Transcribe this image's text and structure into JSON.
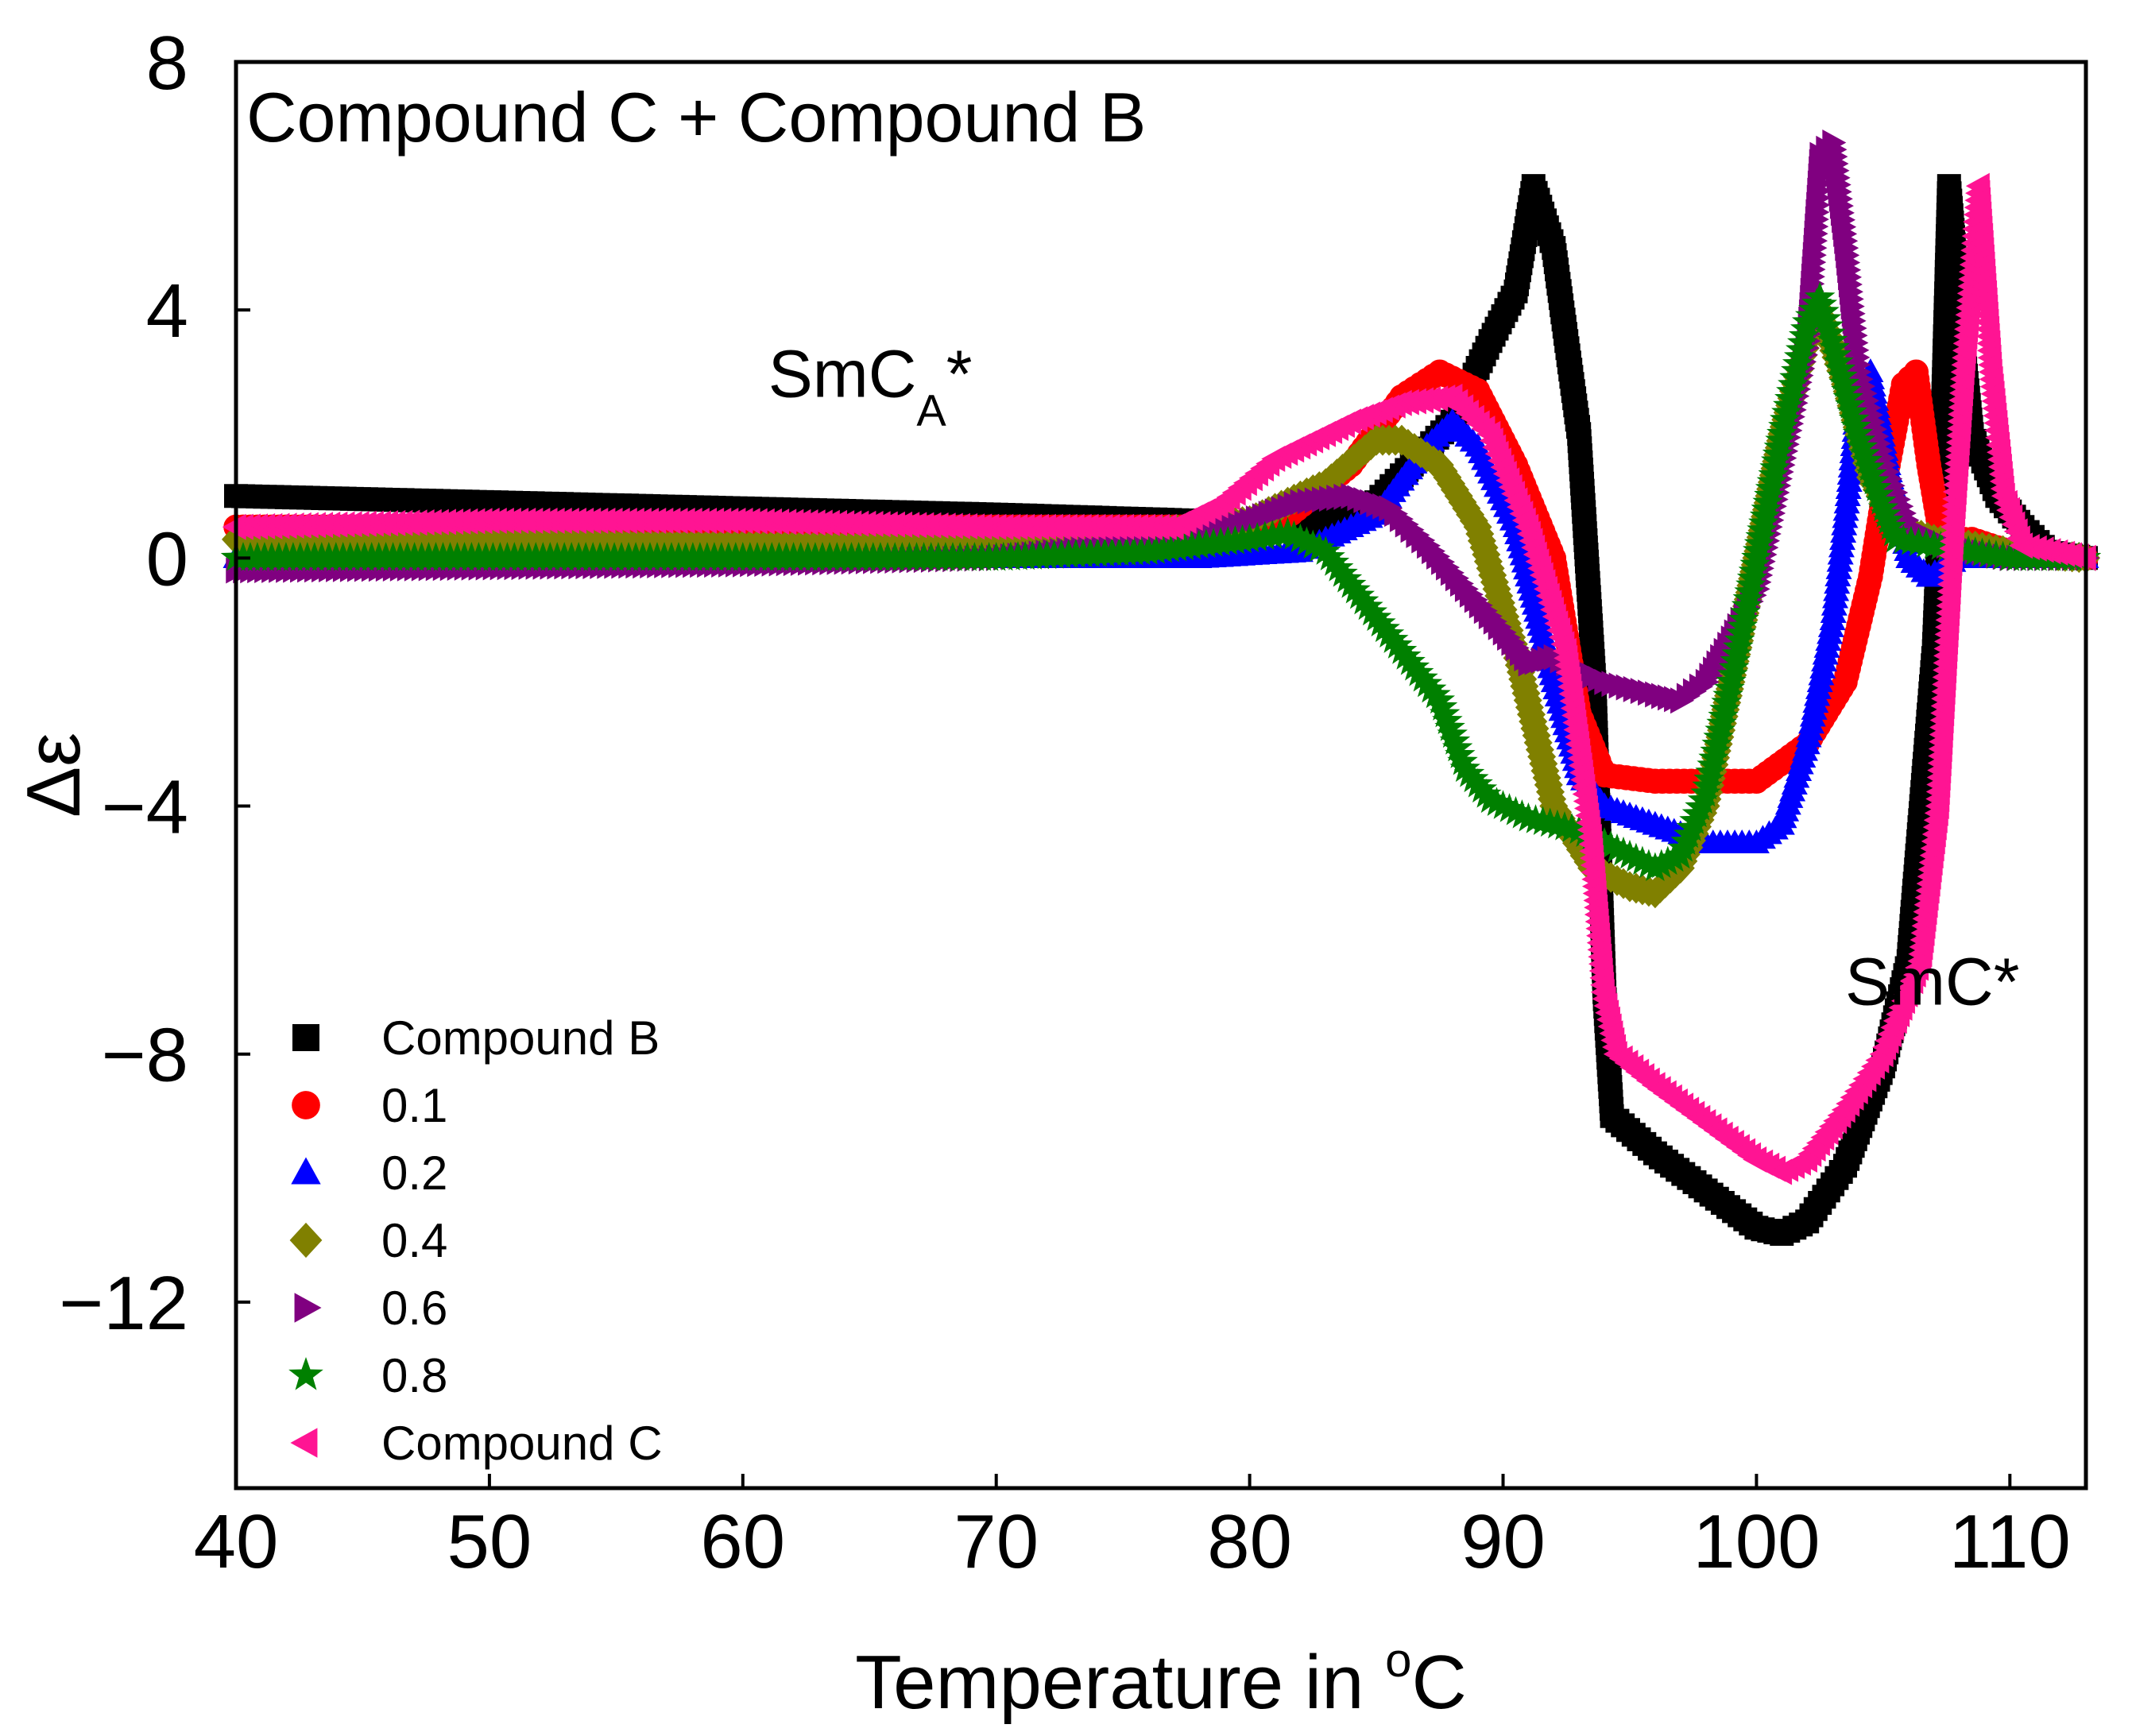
{
  "chart_data": {
    "type": "scatter",
    "title": "Compound C + Compound B",
    "xlabel": {
      "main": "Temperature in ",
      "sup": "o",
      "tail": "C"
    },
    "ylabel": "Δε",
    "xlim": [
      40,
      113
    ],
    "ylim": [
      -15,
      8
    ],
    "xticks": [
      40,
      50,
      60,
      70,
      80,
      90,
      100,
      110
    ],
    "yticks": [
      {
        "value": 8,
        "label": "8"
      },
      {
        "value": 4,
        "label": "4"
      },
      {
        "value": 0,
        "label": "0"
      },
      {
        "value": -4,
        "label": "−4"
      },
      {
        "value": -8,
        "label": "−8"
      },
      {
        "value": -12,
        "label": "−12"
      }
    ],
    "grid": false,
    "legend_position": "bottom-left",
    "annotations": [
      {
        "text": "SmC",
        "sub": "A",
        "tail": "*",
        "x": 61,
        "y": 2.6
      },
      {
        "text": "SmC*",
        "x": 103.5,
        "y": -7.2
      }
    ],
    "series": [
      {
        "name": "Compound B",
        "marker": "square",
        "color": "#000000",
        "points": [
          [
            40,
            1.0
          ],
          [
            50,
            0.9
          ],
          [
            60,
            0.8
          ],
          [
            70,
            0.7
          ],
          [
            78,
            0.6
          ],
          [
            82,
            0.5
          ],
          [
            85,
            0.9
          ],
          [
            88,
            2.2
          ],
          [
            89.5,
            3.5
          ],
          [
            90.5,
            4.3
          ],
          [
            91.2,
            6.0
          ],
          [
            92,
            5.0
          ],
          [
            93,
            2.0
          ],
          [
            93.6,
            -2.0
          ],
          [
            94,
            -7.0
          ],
          [
            94.3,
            -9.0
          ],
          [
            96,
            -9.6
          ],
          [
            98,
            -10.2
          ],
          [
            100,
            -10.8
          ],
          [
            101,
            -10.9
          ],
          [
            102,
            -10.7
          ],
          [
            103.5,
            -9.8
          ],
          [
            105,
            -8.2
          ],
          [
            106,
            -6.5
          ],
          [
            106.5,
            -4.0
          ],
          [
            107,
            -1.5
          ],
          [
            107.3,
            1.5
          ],
          [
            107.6,
            6.0
          ],
          [
            108,
            4.0
          ],
          [
            108.5,
            2.0
          ],
          [
            109.5,
            1.0
          ],
          [
            110.5,
            0.5
          ],
          [
            111.5,
            0.1
          ],
          [
            113,
            0.0
          ]
        ]
      },
      {
        "name": "0.1",
        "marker": "circle",
        "color": "#ff0000",
        "points": [
          [
            40,
            0.5
          ],
          [
            60,
            0.5
          ],
          [
            70,
            0.5
          ],
          [
            77,
            0.5
          ],
          [
            81,
            0.5
          ],
          [
            84,
            1.5
          ],
          [
            86,
            2.6
          ],
          [
            87.5,
            3.0
          ],
          [
            89,
            2.7
          ],
          [
            90.5,
            1.5
          ],
          [
            92,
            0.0
          ],
          [
            93,
            -2.5
          ],
          [
            94,
            -3.5
          ],
          [
            96,
            -3.6
          ],
          [
            98,
            -3.6
          ],
          [
            100,
            -3.6
          ],
          [
            102,
            -3.0
          ],
          [
            103.5,
            -2.0
          ],
          [
            104.5,
            -0.3
          ],
          [
            105.2,
            1.5
          ],
          [
            105.8,
            2.8
          ],
          [
            106.3,
            3.0
          ],
          [
            106.8,
            1.5
          ],
          [
            107.3,
            0.3
          ],
          [
            108.5,
            0.3
          ],
          [
            110,
            0.1
          ],
          [
            113,
            0.0
          ]
        ]
      },
      {
        "name": "0.2",
        "marker": "triangle-up",
        "color": "#0000ff",
        "points": [
          [
            40,
            0.0
          ],
          [
            60,
            0.0
          ],
          [
            70,
            0.0
          ],
          [
            78,
            0.0
          ],
          [
            82,
            0.1
          ],
          [
            85,
            0.7
          ],
          [
            87,
            1.8
          ],
          [
            88,
            2.2
          ],
          [
            89,
            1.8
          ],
          [
            90.5,
            0.5
          ],
          [
            92,
            -2.0
          ],
          [
            93,
            -3.5
          ],
          [
            94,
            -4.0
          ],
          [
            96,
            -4.3
          ],
          [
            98,
            -4.6
          ],
          [
            100,
            -4.6
          ],
          [
            101,
            -4.3
          ],
          [
            102,
            -3.0
          ],
          [
            103,
            -1.0
          ],
          [
            103.6,
            1.0
          ],
          [
            104,
            2.5
          ],
          [
            104.5,
            3.0
          ],
          [
            105.2,
            1.5
          ],
          [
            106,
            0.0
          ],
          [
            106.8,
            -0.3
          ],
          [
            108,
            0.0
          ],
          [
            110,
            0.0
          ],
          [
            113,
            0.0
          ]
        ]
      },
      {
        "name": "0.4",
        "marker": "diamond",
        "color": "#808000",
        "points": [
          [
            40,
            0.3
          ],
          [
            60,
            0.2
          ],
          [
            70,
            0.2
          ],
          [
            76,
            0.4
          ],
          [
            80,
            0.6
          ],
          [
            83,
            1.2
          ],
          [
            85,
            1.9
          ],
          [
            86,
            1.9
          ],
          [
            87.5,
            1.5
          ],
          [
            89,
            0.5
          ],
          [
            90.5,
            -1.5
          ],
          [
            92,
            -4.0
          ],
          [
            93.5,
            -5.0
          ],
          [
            95,
            -5.3
          ],
          [
            96,
            -5.4
          ],
          [
            97,
            -5.0
          ],
          [
            98,
            -4.0
          ],
          [
            99,
            -2.0
          ],
          [
            100,
            0.0
          ],
          [
            101,
            2.0
          ],
          [
            102,
            3.5
          ],
          [
            102.5,
            4.0
          ],
          [
            103.5,
            2.8
          ],
          [
            104.5,
            1.3
          ],
          [
            105.5,
            0.5
          ],
          [
            107,
            0.3
          ],
          [
            110,
            0.1
          ],
          [
            113,
            0.0
          ]
        ]
      },
      {
        "name": "0.6",
        "marker": "triangle-right",
        "color": "#800080",
        "points": [
          [
            40,
            -0.2
          ],
          [
            60,
            -0.1
          ],
          [
            70,
            0.0
          ],
          [
            77,
            0.3
          ],
          [
            80,
            0.6
          ],
          [
            82,
            0.9
          ],
          [
            84,
            1.0
          ],
          [
            85.5,
            0.8
          ],
          [
            87,
            0.2
          ],
          [
            88.5,
            -0.5
          ],
          [
            90,
            -1.2
          ],
          [
            91,
            -1.7
          ],
          [
            92,
            -1.6
          ],
          [
            94,
            -2.0
          ],
          [
            96,
            -2.2
          ],
          [
            97,
            -2.3
          ],
          [
            98,
            -2.0
          ],
          [
            99,
            -1.3
          ],
          [
            100,
            -0.5
          ],
          [
            101,
            1.5
          ],
          [
            102,
            3.5
          ],
          [
            102.5,
            6.5
          ],
          [
            103,
            6.7
          ],
          [
            103.5,
            5.0
          ],
          [
            104,
            3.0
          ],
          [
            105,
            1.5
          ],
          [
            106,
            0.5
          ],
          [
            107.5,
            0.2
          ],
          [
            110,
            0.0
          ],
          [
            113,
            0.0
          ]
        ]
      },
      {
        "name": "0.8",
        "marker": "star",
        "color": "#008000",
        "points": [
          [
            40,
            0.0
          ],
          [
            60,
            0.0
          ],
          [
            70,
            0.0
          ],
          [
            76,
            0.1
          ],
          [
            80,
            0.3
          ],
          [
            81.5,
            0.4
          ],
          [
            83,
            0.1
          ],
          [
            84.5,
            -0.7
          ],
          [
            86,
            -1.5
          ],
          [
            87.5,
            -2.3
          ],
          [
            88.5,
            -3.4
          ],
          [
            89.5,
            -3.9
          ],
          [
            91,
            -4.2
          ],
          [
            93,
            -4.4
          ],
          [
            94.5,
            -4.7
          ],
          [
            96,
            -5.0
          ],
          [
            97,
            -4.8
          ],
          [
            98,
            -3.8
          ],
          [
            99,
            -2.0
          ],
          [
            100,
            0.0
          ],
          [
            101,
            2.0
          ],
          [
            102,
            3.8
          ],
          [
            102.5,
            4.2
          ],
          [
            103,
            3.5
          ],
          [
            104,
            2.0
          ],
          [
            105,
            0.8
          ],
          [
            105.5,
            0.3
          ],
          [
            107,
            0.2
          ],
          [
            110,
            0.0
          ],
          [
            113,
            0.0
          ]
        ]
      },
      {
        "name": "Compound C",
        "marker": "triangle-left",
        "color": "#ff1493",
        "points": [
          [
            40,
            0.5
          ],
          [
            50,
            0.6
          ],
          [
            60,
            0.6
          ],
          [
            70,
            0.5
          ],
          [
            77,
            0.5
          ],
          [
            79,
            0.9
          ],
          [
            81,
            1.6
          ],
          [
            84,
            2.2
          ],
          [
            86,
            2.5
          ],
          [
            88,
            2.6
          ],
          [
            89.5,
            2.0
          ],
          [
            91,
            0.5
          ],
          [
            92.5,
            -1.5
          ],
          [
            93.5,
            -4.5
          ],
          [
            94,
            -7.0
          ],
          [
            94.5,
            -8.0
          ],
          [
            96,
            -8.5
          ],
          [
            98,
            -9.1
          ],
          [
            100,
            -9.7
          ],
          [
            101,
            -9.9
          ],
          [
            102,
            -9.7
          ],
          [
            103.5,
            -8.9
          ],
          [
            105,
            -8.0
          ],
          [
            106.5,
            -6.5
          ],
          [
            107.2,
            -4.0
          ],
          [
            107.8,
            0.5
          ],
          [
            108.2,
            3.0
          ],
          [
            108.8,
            6.0
          ],
          [
            109.3,
            3.0
          ],
          [
            109.8,
            1.0
          ],
          [
            110.5,
            0.2
          ],
          [
            113,
            0.0
          ]
        ]
      }
    ]
  }
}
